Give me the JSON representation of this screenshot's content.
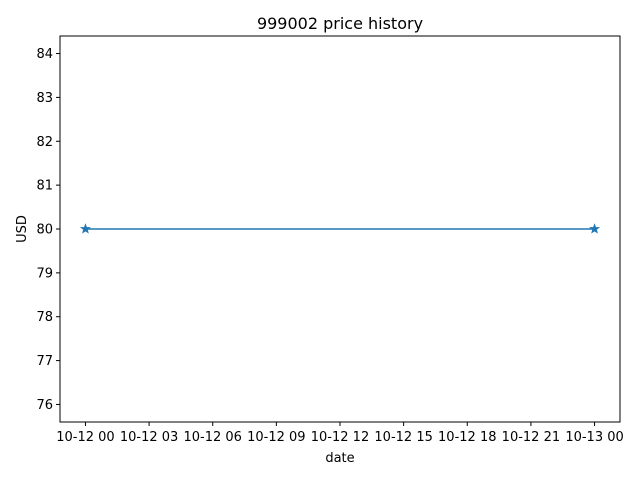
{
  "chart_data": {
    "type": "line",
    "title": "999002 price history",
    "xlabel": "date",
    "ylabel": "USD",
    "x_ticks": [
      "10-12 00",
      "10-12 03",
      "10-12 06",
      "10-12 09",
      "10-12 12",
      "10-12 15",
      "10-12 18",
      "10-12 21",
      "10-13 00"
    ],
    "y_ticks": [
      "76",
      "77",
      "78",
      "79",
      "80",
      "81",
      "82",
      "83",
      "84"
    ],
    "ylim": [
      75.6,
      84.4
    ],
    "xlim": [
      "10-11 22:48",
      "10-13 01:12"
    ],
    "series": [
      {
        "x": [
          "10-12 00:00",
          "10-13 00:00"
        ],
        "values": [
          80,
          80
        ],
        "color": "#1f77b4",
        "marker": "star"
      }
    ],
    "grid": false,
    "legend": "none"
  }
}
